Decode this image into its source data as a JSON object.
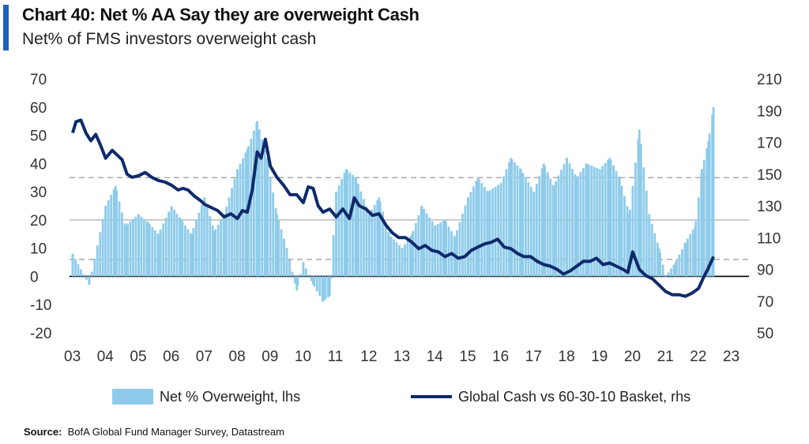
{
  "title": "Chart 40: Net % AA Say they are overweight Cash",
  "subtitle": "Net% of FMS investors overweight cash",
  "source_label": "Source:",
  "source_text": "BofA Global Fund Manager Survey, Datastream",
  "colors": {
    "bars": "#8ecbea",
    "line": "#0e2a6b",
    "zero": "#000000",
    "grid20": "#bbbbbb",
    "dashed": "#aaaaaa",
    "title_accent": "#1f5fbf"
  },
  "chart_data": {
    "type": "bar+line",
    "x_ticks": [
      "03",
      "04",
      "05",
      "06",
      "07",
      "08",
      "09",
      "10",
      "11",
      "12",
      "13",
      "14",
      "15",
      "16",
      "17",
      "18",
      "19",
      "20",
      "21",
      "22",
      "23"
    ],
    "y_left": {
      "ticks": [
        "70",
        "60",
        "50",
        "40",
        "30",
        "20",
        "10",
        "0",
        "-10",
        "-20"
      ],
      "range": [
        -20,
        70
      ]
    },
    "y_right": {
      "ticks": [
        "210",
        "190",
        "170",
        "150",
        "130",
        "110",
        "90",
        "70",
        "50"
      ],
      "range": [
        50,
        210
      ]
    },
    "reference_lines": {
      "solid_left": 20,
      "dashed_upper_left": 35,
      "dashed_lower_left": 6
    },
    "legend": {
      "bars": "Net % Overweight, lhs",
      "line": "Global Cash vs 60-30-10 Basket, rhs",
      "placement": "bottom"
    },
    "series": [
      {
        "name": "Net % Overweight, lhs",
        "kind": "bar",
        "axis": "left",
        "x": [
          2003.0,
          2003.5,
          2004.0,
          2004.3,
          2004.6,
          2005.0,
          2005.3,
          2005.6,
          2006.0,
          2006.3,
          2006.6,
          2007.0,
          2007.3,
          2007.6,
          2008.0,
          2008.3,
          2008.6,
          2008.9,
          2009.2,
          2009.5,
          2009.8,
          2010.0,
          2010.3,
          2010.6,
          2010.8,
          2011.0,
          2011.3,
          2011.6,
          2012.0,
          2012.3,
          2012.6,
          2013.0,
          2013.3,
          2013.6,
          2014.0,
          2014.3,
          2014.6,
          2015.0,
          2015.3,
          2015.6,
          2016.0,
          2016.3,
          2016.6,
          2017.0,
          2017.3,
          2017.6,
          2018.0,
          2018.3,
          2018.6,
          2019.0,
          2019.3,
          2019.6,
          2019.9,
          2020.2,
          2020.5,
          2020.8,
          2021.0,
          2021.3,
          2021.6,
          2021.9,
          2022.1,
          2022.3,
          2022.45
        ],
        "values": [
          8,
          -3,
          25,
          32,
          18,
          22,
          19,
          15,
          25,
          20,
          15,
          28,
          16,
          22,
          38,
          45,
          55,
          42,
          22,
          10,
          -5,
          5,
          -3,
          -9,
          -7,
          30,
          38,
          35,
          22,
          28,
          15,
          10,
          15,
          25,
          18,
          20,
          14,
          28,
          35,
          30,
          33,
          42,
          38,
          30,
          40,
          32,
          42,
          35,
          40,
          38,
          42,
          35,
          22,
          52,
          22,
          10,
          0,
          5,
          12,
          18,
          38,
          48,
          60
        ]
      },
      {
        "name": "Global Cash vs 60-30-10 Basket, rhs",
        "kind": "line",
        "axis": "right",
        "x": [
          2003.0,
          2003.1,
          2003.25,
          2003.4,
          2003.55,
          2003.7,
          2003.85,
          2004.0,
          2004.2,
          2004.35,
          2004.5,
          2004.65,
          2004.8,
          2005.0,
          2005.2,
          2005.4,
          2005.6,
          2005.8,
          2006.0,
          2006.2,
          2006.35,
          2006.5,
          2006.7,
          2006.9,
          2007.0,
          2007.2,
          2007.4,
          2007.6,
          2007.8,
          2008.0,
          2008.15,
          2008.3,
          2008.45,
          2008.6,
          2008.72,
          2008.85,
          2009.0,
          2009.2,
          2009.4,
          2009.6,
          2009.8,
          2010.0,
          2010.15,
          2010.3,
          2010.45,
          2010.6,
          2010.8,
          2011.0,
          2011.2,
          2011.4,
          2011.55,
          2011.7,
          2011.9,
          2012.1,
          2012.3,
          2012.5,
          2012.7,
          2012.9,
          2013.1,
          2013.3,
          2013.5,
          2013.7,
          2013.9,
          2014.1,
          2014.3,
          2014.5,
          2014.7,
          2014.9,
          2015.1,
          2015.3,
          2015.5,
          2015.7,
          2015.9,
          2016.1,
          2016.3,
          2016.5,
          2016.7,
          2016.9,
          2017.1,
          2017.3,
          2017.5,
          2017.7,
          2017.9,
          2018.1,
          2018.3,
          2018.5,
          2018.7,
          2018.9,
          2019.1,
          2019.3,
          2019.5,
          2019.7,
          2019.85,
          2020.0,
          2020.2,
          2020.4,
          2020.6,
          2020.8,
          2021.0,
          2021.2,
          2021.4,
          2021.6,
          2021.8,
          2022.0,
          2022.15,
          2022.3,
          2022.45
        ],
        "values": [
          176,
          183,
          184,
          176,
          171,
          175,
          168,
          160,
          165,
          162,
          159,
          150,
          148,
          149,
          151,
          148,
          146,
          145,
          143,
          140,
          141,
          140,
          136,
          133,
          131,
          129,
          127,
          123,
          125,
          122,
          127,
          126,
          140,
          164,
          160,
          172,
          155,
          148,
          143,
          137,
          137,
          132,
          142,
          141,
          130,
          126,
          128,
          123,
          128,
          122,
          135,
          130,
          128,
          124,
          125,
          118,
          113,
          110,
          110,
          107,
          103,
          105,
          102,
          101,
          98,
          100,
          97,
          98,
          102,
          104,
          106,
          107,
          109,
          104,
          103,
          100,
          98,
          98,
          95,
          93,
          92,
          90,
          87,
          89,
          92,
          95,
          95,
          97,
          93,
          94,
          92,
          90,
          88,
          101,
          90,
          86,
          84,
          80,
          76,
          74,
          74,
          73,
          75,
          78,
          85,
          91,
          98
        ]
      }
    ]
  }
}
